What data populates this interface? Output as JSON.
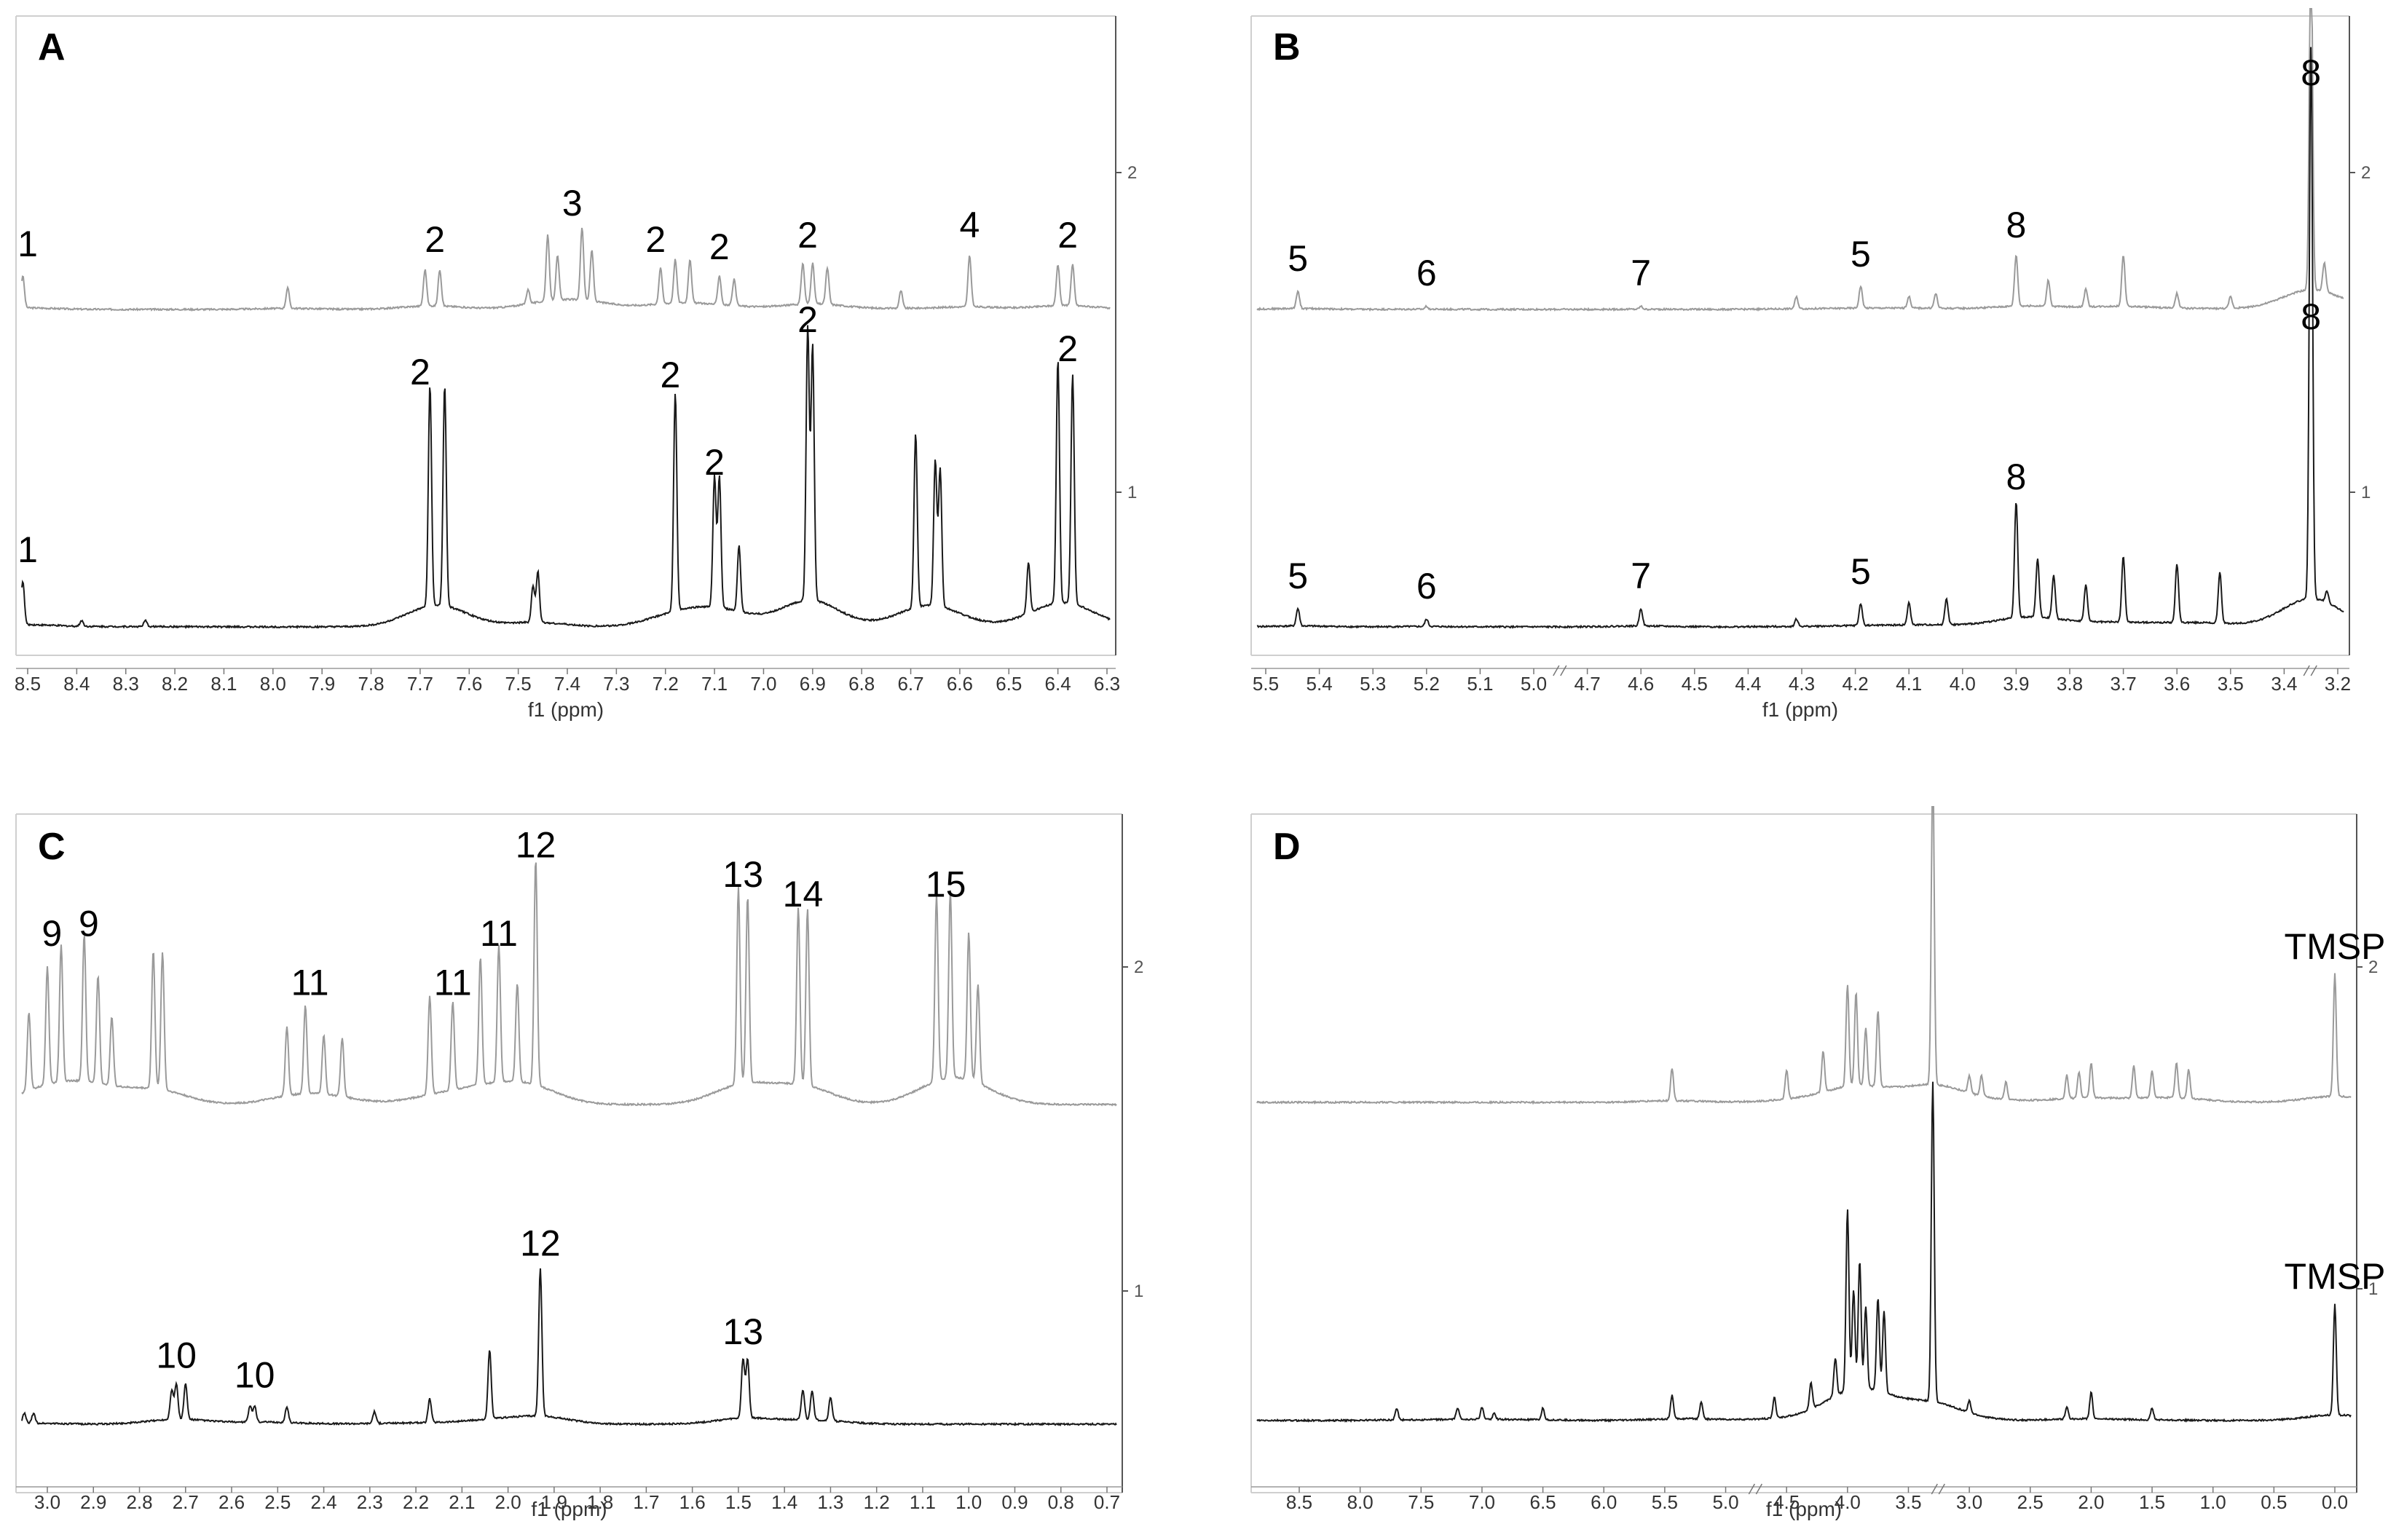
{
  "chart_data": [
    {
      "type": "line",
      "panel": "A",
      "xlabel": "f1 (ppm)",
      "x_ticks": [
        "8.5",
        "8.4",
        "8.3",
        "8.2",
        "8.1",
        "8.0",
        "7.9",
        "7.8",
        "7.7",
        "7.6",
        "7.5",
        "7.4",
        "7.3",
        "7.2",
        "7.1",
        "7.0",
        "6.9",
        "6.8",
        "6.7",
        "6.6",
        "6.5",
        "6.4",
        "6.3"
      ],
      "x_reversed": true,
      "xlim": [
        8.52,
        6.28
      ],
      "right_ticks": [
        "1",
        "2"
      ],
      "series": [
        {
          "trace": "upper",
          "color": "#9a9a9a",
          "peaks": [
            [
              8.51,
              0.22
            ],
            [
              7.97,
              0.14
            ],
            [
              7.69,
              0.25
            ],
            [
              7.66,
              0.25
            ],
            [
              7.48,
              0.1
            ],
            [
              7.44,
              0.45
            ],
            [
              7.42,
              0.3
            ],
            [
              7.37,
              0.5
            ],
            [
              7.35,
              0.35
            ],
            [
              7.21,
              0.25
            ],
            [
              7.18,
              0.3
            ],
            [
              7.15,
              0.3
            ],
            [
              7.09,
              0.2
            ],
            [
              7.06,
              0.18
            ],
            [
              6.92,
              0.28
            ],
            [
              6.9,
              0.28
            ],
            [
              6.87,
              0.25
            ],
            [
              6.72,
              0.12
            ],
            [
              6.58,
              0.35
            ],
            [
              6.4,
              0.28
            ],
            [
              6.37,
              0.28
            ]
          ]
        },
        {
          "trace": "lower",
          "color": "#1a1a1a",
          "peaks": [
            [
              8.51,
              0.3
            ],
            [
              8.39,
              0.04
            ],
            [
              8.26,
              0.04
            ],
            [
              7.68,
              1.52
            ],
            [
              7.65,
              1.52
            ],
            [
              7.47,
              0.25
            ],
            [
              7.46,
              0.35
            ],
            [
              7.18,
              1.5
            ],
            [
              7.1,
              0.9
            ],
            [
              7.09,
              0.9
            ],
            [
              7.05,
              0.45
            ],
            [
              6.91,
              1.88
            ],
            [
              6.9,
              1.75
            ],
            [
              6.69,
              1.2
            ],
            [
              6.65,
              1.0
            ],
            [
              6.64,
              0.95
            ],
            [
              6.46,
              0.35
            ],
            [
              6.4,
              1.68
            ],
            [
              6.37,
              1.58
            ]
          ]
        }
      ],
      "annotations": [
        {
          "text": "1",
          "trace": "upper",
          "x": 8.5
        },
        {
          "text": "2",
          "trace": "upper",
          "x": 7.67
        },
        {
          "text": "3",
          "trace": "upper",
          "x": 7.39
        },
        {
          "text": "2",
          "trace": "upper",
          "x": 7.22
        },
        {
          "text": "2",
          "trace": "upper",
          "x": 7.09
        },
        {
          "text": "2",
          "trace": "upper",
          "x": 6.91
        },
        {
          "text": "4",
          "trace": "upper",
          "x": 6.58
        },
        {
          "text": "2",
          "trace": "upper",
          "x": 6.38
        },
        {
          "text": "1",
          "trace": "lower",
          "x": 8.5
        },
        {
          "text": "2",
          "trace": "lower",
          "x": 7.7
        },
        {
          "text": "2",
          "trace": "lower",
          "x": 7.19
        },
        {
          "text": "2",
          "trace": "lower",
          "x": 7.1
        },
        {
          "text": "2",
          "trace": "lower",
          "x": 6.91
        },
        {
          "text": "2",
          "trace": "lower",
          "x": 6.38
        }
      ]
    },
    {
      "type": "line",
      "panel": "B",
      "xlabel": "f1 (ppm)",
      "x_ticks": [
        "5.5",
        "5.4",
        "5.3",
        "5.2",
        "5.1",
        "5.0",
        "4.7",
        "4.6",
        "4.5",
        "4.4",
        "4.3",
        "4.2",
        "4.1",
        "4.0",
        "3.9",
        "3.8",
        "3.7",
        "3.6",
        "3.5",
        "3.4",
        "3.2"
      ],
      "axis_breaks_after": [
        "5.0",
        "3.4"
      ],
      "x_reversed": true,
      "right_ticks": [
        "1",
        "2"
      ],
      "series": [
        {
          "trace": "upper",
          "color": "#9a9a9a",
          "peaks": [
            [
              5.44,
              0.12
            ],
            [
              5.2,
              0.02
            ],
            [
              4.6,
              0.02
            ],
            [
              4.31,
              0.08
            ],
            [
              4.19,
              0.15
            ],
            [
              4.1,
              0.08
            ],
            [
              4.05,
              0.1
            ],
            [
              3.9,
              0.35
            ],
            [
              3.84,
              0.18
            ],
            [
              3.77,
              0.12
            ],
            [
              3.7,
              0.35
            ],
            [
              3.6,
              0.1
            ],
            [
              3.5,
              0.08
            ],
            [
              3.3,
              2.5
            ],
            [
              3.25,
              0.2
            ]
          ]
        },
        {
          "trace": "lower",
          "color": "#1a1a1a",
          "peaks": [
            [
              5.44,
              0.12
            ],
            [
              5.2,
              0.05
            ],
            [
              4.6,
              0.12
            ],
            [
              4.31,
              0.05
            ],
            [
              4.19,
              0.15
            ],
            [
              4.1,
              0.15
            ],
            [
              4.03,
              0.18
            ],
            [
              3.9,
              0.8
            ],
            [
              3.86,
              0.4
            ],
            [
              3.83,
              0.3
            ],
            [
              3.77,
              0.25
            ],
            [
              3.7,
              0.45
            ],
            [
              3.6,
              0.4
            ],
            [
              3.52,
              0.35
            ],
            [
              3.3,
              3.8
            ],
            [
              3.24,
              0.08
            ]
          ]
        }
      ],
      "annotations": [
        {
          "text": "5",
          "trace": "upper",
          "x": 5.44
        },
        {
          "text": "6",
          "trace": "upper",
          "x": 5.2
        },
        {
          "text": "7",
          "trace": "upper",
          "x": 4.6
        },
        {
          "text": "5",
          "trace": "upper",
          "x": 4.19
        },
        {
          "text": "8",
          "trace": "upper",
          "x": 3.9
        },
        {
          "text": "8",
          "trace": "top",
          "x": 3.3
        },
        {
          "text": "5",
          "trace": "lower",
          "x": 5.44
        },
        {
          "text": "6",
          "trace": "lower",
          "x": 5.2
        },
        {
          "text": "7",
          "trace": "lower",
          "x": 4.6
        },
        {
          "text": "5",
          "trace": "lower",
          "x": 4.19
        },
        {
          "text": "8",
          "trace": "lower",
          "x": 3.9
        },
        {
          "text": "8",
          "trace": "upper",
          "x": 3.3
        }
      ]
    },
    {
      "type": "line",
      "panel": "C",
      "xlabel": "f1 (ppm)",
      "x_ticks": [
        "3.0",
        "2.9",
        "2.8",
        "2.7",
        "2.6",
        "2.5",
        "2.4",
        "2.3",
        "2.2",
        "2.1",
        "2.0",
        "1.9",
        "1.8",
        "1.7",
        "1.6",
        "1.5",
        "1.4",
        "1.3",
        "1.2",
        "1.1",
        "1.0",
        "0.9",
        "0.8",
        "0.7"
      ],
      "x_reversed": true,
      "xlim": [
        3.05,
        0.67
      ],
      "right_ticks": [
        "1",
        "2"
      ],
      "series": [
        {
          "trace": "upper",
          "color": "#9a9a9a",
          "peaks": [
            [
              3.04,
              0.4
            ],
            [
              3.0,
              0.6
            ],
            [
              2.97,
              0.7
            ],
            [
              2.92,
              0.75
            ],
            [
              2.89,
              0.55
            ],
            [
              2.86,
              0.35
            ],
            [
              2.77,
              0.7
            ],
            [
              2.75,
              0.7
            ],
            [
              2.48,
              0.35
            ],
            [
              2.44,
              0.45
            ],
            [
              2.4,
              0.3
            ],
            [
              2.36,
              0.3
            ],
            [
              2.17,
              0.5
            ],
            [
              2.12,
              0.45
            ],
            [
              2.06,
              0.65
            ],
            [
              2.02,
              0.7
            ],
            [
              1.98,
              0.5
            ],
            [
              1.94,
              1.15
            ],
            [
              1.5,
              1.0
            ],
            [
              1.48,
              0.95
            ],
            [
              1.37,
              0.9
            ],
            [
              1.35,
              0.9
            ],
            [
              1.07,
              0.95
            ],
            [
              1.04,
              0.95
            ],
            [
              1.0,
              0.75
            ],
            [
              0.98,
              0.5
            ]
          ]
        },
        {
          "trace": "lower",
          "color": "#1a1a1a",
          "peaks": [
            [
              3.05,
              0.05
            ],
            [
              3.03,
              0.05
            ],
            [
              2.73,
              0.15
            ],
            [
              2.72,
              0.18
            ],
            [
              2.7,
              0.18
            ],
            [
              2.56,
              0.08
            ],
            [
              2.55,
              0.08
            ],
            [
              2.48,
              0.08
            ],
            [
              2.29,
              0.06
            ],
            [
              2.17,
              0.12
            ],
            [
              2.04,
              0.35
            ],
            [
              1.93,
              0.75
            ],
            [
              1.49,
              0.3
            ],
            [
              1.48,
              0.3
            ],
            [
              1.36,
              0.15
            ],
            [
              1.34,
              0.15
            ],
            [
              1.3,
              0.12
            ]
          ]
        }
      ],
      "annotations": [
        {
          "text": "9",
          "trace": "upper",
          "x": 2.99
        },
        {
          "text": "9",
          "trace": "upper",
          "x": 2.91
        },
        {
          "text": "11",
          "trace": "upper",
          "x": 2.43
        },
        {
          "text": "11",
          "trace": "upper",
          "x": 2.12
        },
        {
          "text": "11",
          "trace": "upper",
          "x": 2.02
        },
        {
          "text": "12",
          "trace": "upper",
          "x": 1.94
        },
        {
          "text": "13",
          "trace": "upper",
          "x": 1.49
        },
        {
          "text": "14",
          "trace": "upper",
          "x": 1.36
        },
        {
          "text": "15",
          "trace": "upper",
          "x": 1.05
        },
        {
          "text": "10",
          "trace": "lower",
          "x": 2.72
        },
        {
          "text": "10",
          "trace": "lower",
          "x": 2.55
        },
        {
          "text": "12",
          "trace": "lower",
          "x": 1.93
        },
        {
          "text": "13",
          "trace": "lower",
          "x": 1.49
        }
      ]
    },
    {
      "type": "line",
      "panel": "D",
      "xlabel": "f1 (ppm)",
      "x_ticks": [
        "8.5",
        "8.0",
        "7.5",
        "7.0",
        "6.5",
        "6.0",
        "5.5",
        "5.0",
        "4.5",
        "4.0",
        "3.5",
        "3.0",
        "2.5",
        "2.0",
        "1.5",
        "1.0",
        "0.5",
        "0.0"
      ],
      "axis_breaks_after": [
        "5.0",
        "3.5"
      ],
      "x_reversed": true,
      "right_ticks": [
        "1",
        "2"
      ],
      "series": [
        {
          "trace": "upper",
          "color": "#9a9a9a",
          "peaks": [
            [
              5.44,
              0.55
            ],
            [
              4.5,
              0.5
            ],
            [
              4.2,
              0.7
            ],
            [
              4.0,
              1.75
            ],
            [
              3.93,
              1.6
            ],
            [
              3.85,
              1.0
            ],
            [
              3.75,
              1.3
            ],
            [
              3.3,
              5.5
            ],
            [
              3.0,
              0.3
            ],
            [
              2.9,
              0.35
            ],
            [
              2.7,
              0.3
            ],
            [
              2.2,
              0.4
            ],
            [
              2.1,
              0.45
            ],
            [
              2.0,
              0.6
            ],
            [
              1.65,
              0.55
            ],
            [
              1.5,
              0.45
            ],
            [
              1.3,
              0.6
            ],
            [
              1.2,
              0.5
            ],
            [
              0.0,
              2.1
            ]
          ]
        },
        {
          "trace": "lower",
          "color": "#1a1a1a",
          "peaks": [
            [
              7.7,
              0.2
            ],
            [
              7.2,
              0.2
            ],
            [
              7.0,
              0.2
            ],
            [
              6.9,
              0.1
            ],
            [
              6.5,
              0.2
            ],
            [
              5.44,
              0.4
            ],
            [
              5.2,
              0.3
            ],
            [
              4.6,
              0.35
            ],
            [
              4.3,
              0.45
            ],
            [
              4.1,
              0.65
            ],
            [
              4.0,
              3.1
            ],
            [
              3.95,
              1.7
            ],
            [
              3.9,
              2.2
            ],
            [
              3.85,
              1.4
            ],
            [
              3.75,
              1.6
            ],
            [
              3.7,
              1.4
            ],
            [
              3.3,
              5.5
            ],
            [
              3.0,
              0.2
            ],
            [
              2.2,
              0.2
            ],
            [
              2.0,
              0.45
            ],
            [
              1.5,
              0.2
            ],
            [
              0.0,
              1.9
            ]
          ]
        }
      ],
      "annotations": [
        {
          "text": "TMSP",
          "trace": "upper",
          "x": 0.0
        },
        {
          "text": "TMSP",
          "trace": "lower",
          "x": 0.0
        }
      ]
    }
  ]
}
